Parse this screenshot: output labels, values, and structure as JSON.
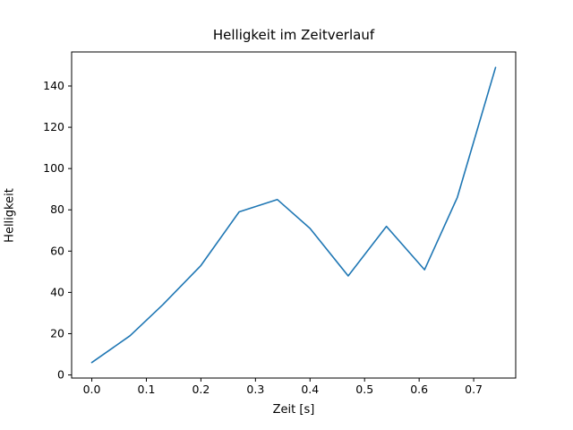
{
  "chart_data": {
    "type": "line",
    "title": "Helligkeit im Zeitverlauf",
    "xlabel": "Zeit [s]",
    "ylabel": "Helligkeit",
    "x": [
      0.0,
      0.07,
      0.13,
      0.2,
      0.27,
      0.34,
      0.4,
      0.47,
      0.54,
      0.61,
      0.67,
      0.74
    ],
    "y": [
      6,
      19,
      34,
      53,
      79,
      85,
      71,
      48,
      72,
      51,
      86,
      149
    ],
    "xticks": [
      {
        "v": 0.0,
        "label": "0.0"
      },
      {
        "v": 0.1,
        "label": "0.1"
      },
      {
        "v": 0.2,
        "label": "0.2"
      },
      {
        "v": 0.3,
        "label": "0.3"
      },
      {
        "v": 0.4,
        "label": "0.4"
      },
      {
        "v": 0.5,
        "label": "0.5"
      },
      {
        "v": 0.6,
        "label": "0.6"
      },
      {
        "v": 0.7,
        "label": "0.7"
      }
    ],
    "yticks": [
      {
        "v": 0,
        "label": "0"
      },
      {
        "v": 20,
        "label": "20"
      },
      {
        "v": 40,
        "label": "40"
      },
      {
        "v": 60,
        "label": "60"
      },
      {
        "v": 80,
        "label": "80"
      },
      {
        "v": 100,
        "label": "100"
      },
      {
        "v": 120,
        "label": "120"
      },
      {
        "v": 140,
        "label": "140"
      }
    ],
    "xlim": [
      -0.037,
      0.777
    ],
    "ylim": [
      -1.5,
      156.5
    ],
    "line_color": "#1f77b4",
    "axis_color": "#000000",
    "background_color": "#ffffff",
    "grid": false,
    "legend": null
  }
}
